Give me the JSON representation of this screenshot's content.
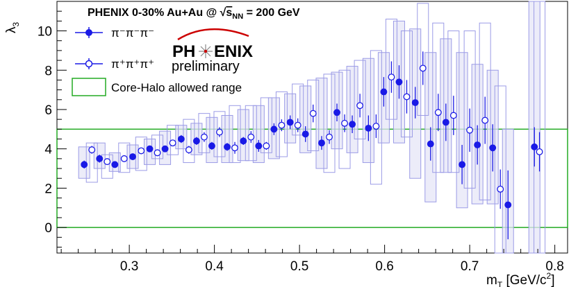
{
  "chart_data": {
    "type": "scatter",
    "title": "PHENIX 0-30% Au+Au @ √s_NN = 200 GeV",
    "title_parts": {
      "prefix": "PHENIX 0-30% Au+Au @ ",
      "sqrt_sign": "√",
      "s": "s",
      "sub": "NN",
      "suffix": " = 200 GeV"
    },
    "xlabel": "m_T [GeV/c²]",
    "xlabel_parts": {
      "m": "m",
      "sub": "T",
      "unit": " [GeV/c",
      "sup": "2",
      "close": "]"
    },
    "ylabel": "λ3",
    "ylabel_parts": {
      "lambda": "λ",
      "sub": "3"
    },
    "xlim": [
      0.215,
      0.815
    ],
    "ylim": [
      -1.3,
      11.5
    ],
    "xticks": [
      0.3,
      0.4,
      0.5,
      0.6,
      0.7,
      0.8
    ],
    "xtick_labels": [
      "0.3",
      "0.4",
      "0.5",
      "0.6",
      "0.7",
      "0.8"
    ],
    "yticks": [
      0,
      2,
      4,
      6,
      8,
      10
    ],
    "ytick_labels": [
      "0",
      "2",
      "4",
      "6",
      "8",
      "10"
    ],
    "grid": false,
    "legend_position": "top-left",
    "colors": {
      "marker": "#1a1ae6",
      "box_fill": "#e6e6f7",
      "box_edge": "#9b9be6",
      "band": "#22aa22"
    },
    "logo": {
      "left": "PH",
      "right": "ENIX",
      "sub": "preliminary"
    },
    "series": [
      {
        "name": "π⁻π⁻π⁻",
        "marker": "filled-circle",
        "points": [
          {
            "x": 0.247,
            "y": 3.2,
            "err": 0.2,
            "sys": [
              2.5,
              4.1
            ]
          },
          {
            "x": 0.265,
            "y": 3.5,
            "err": 0.2,
            "sys": [
              3.0,
              4.3
            ]
          },
          {
            "x": 0.283,
            "y": 3.2,
            "err": 0.15,
            "sys": [
              2.85,
              3.8
            ]
          },
          {
            "x": 0.304,
            "y": 3.6,
            "err": 0.15,
            "sys": [
              3.0,
              4.2
            ]
          },
          {
            "x": 0.324,
            "y": 4.0,
            "err": 0.15,
            "sys": [
              3.2,
              4.5
            ]
          },
          {
            "x": 0.342,
            "y": 4.0,
            "err": 0.15,
            "sys": [
              3.2,
              4.9
            ]
          },
          {
            "x": 0.361,
            "y": 4.5,
            "err": 0.2,
            "sys": [
              4.0,
              5.2
            ]
          },
          {
            "x": 0.379,
            "y": 4.4,
            "err": 0.2,
            "sys": [
              3.7,
              5.3
            ]
          },
          {
            "x": 0.397,
            "y": 4.15,
            "err": 0.2,
            "sys": [
              3.3,
              5.6
            ]
          },
          {
            "x": 0.415,
            "y": 4.1,
            "err": 0.2,
            "sys": [
              3.3,
              5.7
            ]
          },
          {
            "x": 0.434,
            "y": 4.4,
            "err": 0.2,
            "sys": [
              3.4,
              6.0
            ]
          },
          {
            "x": 0.452,
            "y": 4.15,
            "err": 0.3,
            "sys": [
              3.3,
              6.2
            ]
          },
          {
            "x": 0.47,
            "y": 5.0,
            "err": 0.3,
            "sys": [
              3.5,
              6.6
            ]
          },
          {
            "x": 0.489,
            "y": 5.35,
            "err": 0.35,
            "sys": [
              4.3,
              6.8
            ]
          },
          {
            "x": 0.507,
            "y": 4.75,
            "err": 0.4,
            "sys": [
              3.8,
              7.2
            ]
          },
          {
            "x": 0.526,
            "y": 4.3,
            "err": 0.35,
            "sys": [
              3.0,
              7.6
            ]
          },
          {
            "x": 0.544,
            "y": 5.85,
            "err": 0.45,
            "sys": [
              4.0,
              7.9
            ]
          },
          {
            "x": 0.562,
            "y": 5.25,
            "err": 0.45,
            "sys": [
              3.8,
              8.2
            ]
          },
          {
            "x": 0.581,
            "y": 5.05,
            "err": 0.65,
            "sys": [
              3.3,
              8.6
            ]
          },
          {
            "x": 0.599,
            "y": 6.9,
            "err": 0.75,
            "sys": [
              4.3,
              8.9
            ]
          },
          {
            "x": 0.617,
            "y": 7.4,
            "err": 0.85,
            "sys": [
              4.3,
              10.5
            ]
          },
          {
            "x": 0.636,
            "y": 6.35,
            "err": 0.8,
            "sys": [
              2.5,
              10.1
            ]
          },
          {
            "x": 0.654,
            "y": 4.25,
            "err": 0.85,
            "sys": [
              1.3,
              8.9
            ]
          },
          {
            "x": 0.672,
            "y": 5.35,
            "err": 0.95,
            "sys": [
              2.8,
              9.6
            ]
          },
          {
            "x": 0.691,
            "y": 3.2,
            "err": 1.0,
            "sys": [
              1.0,
              8.9
            ]
          },
          {
            "x": 0.709,
            "y": 4.2,
            "err": 1.0,
            "sys": [
              1.2,
              8.3
            ]
          },
          {
            "x": 0.727,
            "y": 4.05,
            "err": 1.2,
            "sys": [
              1.2,
              8.0
            ]
          },
          {
            "x": 0.745,
            "y": 1.15,
            "err": 1.75,
            "sys": [
              -1.3,
              5.0
            ]
          },
          {
            "x": 0.776,
            "y": 4.1,
            "err": 1.0,
            "sys": [
              -1.3,
              11.5
            ]
          }
        ]
      },
      {
        "name": "π⁺π⁺π⁺",
        "marker": "open-circle",
        "points": [
          {
            "x": 0.256,
            "y": 3.95,
            "err": 0.2,
            "sys": [
              2.3,
              4.3
            ]
          },
          {
            "x": 0.274,
            "y": 3.35,
            "err": 0.15,
            "sys": [
              2.5,
              3.7
            ]
          },
          {
            "x": 0.294,
            "y": 3.5,
            "err": 0.15,
            "sys": [
              2.8,
              4.3
            ]
          },
          {
            "x": 0.314,
            "y": 3.9,
            "err": 0.15,
            "sys": [
              2.9,
              4.6
            ]
          },
          {
            "x": 0.333,
            "y": 3.8,
            "err": 0.15,
            "sys": [
              3.5,
              4.7
            ]
          },
          {
            "x": 0.351,
            "y": 4.3,
            "err": 0.15,
            "sys": [
              3.7,
              5.2
            ]
          },
          {
            "x": 0.37,
            "y": 3.95,
            "err": 0.2,
            "sys": [
              3.3,
              5.5
            ]
          },
          {
            "x": 0.388,
            "y": 4.6,
            "err": 0.25,
            "sys": [
              3.8,
              5.8
            ]
          },
          {
            "x": 0.406,
            "y": 4.85,
            "err": 0.25,
            "sys": [
              3.6,
              5.9
            ]
          },
          {
            "x": 0.424,
            "y": 4.05,
            "err": 0.3,
            "sys": [
              3.3,
              6.2
            ]
          },
          {
            "x": 0.443,
            "y": 4.6,
            "err": 0.3,
            "sys": [
              3.4,
              6.2
            ]
          },
          {
            "x": 0.461,
            "y": 4.15,
            "err": 0.2,
            "sys": [
              3.8,
              6.6
            ]
          },
          {
            "x": 0.479,
            "y": 5.2,
            "err": 0.3,
            "sys": [
              3.6,
              6.9
            ]
          },
          {
            "x": 0.498,
            "y": 5.2,
            "err": 0.35,
            "sys": [
              4.7,
              7.3
            ]
          },
          {
            "x": 0.516,
            "y": 5.8,
            "err": 0.45,
            "sys": [
              3.9,
              7.5
            ]
          },
          {
            "x": 0.535,
            "y": 4.6,
            "err": 0.35,
            "sys": [
              2.8,
              7.8
            ]
          },
          {
            "x": 0.553,
            "y": 5.3,
            "err": 0.45,
            "sys": [
              3.0,
              8.0
            ]
          },
          {
            "x": 0.571,
            "y": 6.2,
            "err": 0.6,
            "sys": [
              4.5,
              8.5
            ]
          },
          {
            "x": 0.59,
            "y": 5.15,
            "err": 0.6,
            "sys": [
              2.2,
              9.0
            ]
          },
          {
            "x": 0.608,
            "y": 7.65,
            "err": 0.8,
            "sys": [
              5.5,
              10.6
            ]
          },
          {
            "x": 0.626,
            "y": 6.65,
            "err": 0.85,
            "sys": [
              4.6,
              10.0
            ]
          },
          {
            "x": 0.645,
            "y": 8.1,
            "err": 0.85,
            "sys": [
              5.7,
              11.4
            ]
          },
          {
            "x": 0.663,
            "y": 5.85,
            "err": 0.95,
            "sys": [
              2.8,
              10.4
            ]
          },
          {
            "x": 0.681,
            "y": 5.7,
            "err": 1.0,
            "sys": [
              2.8,
              10.0
            ]
          },
          {
            "x": 0.7,
            "y": 4.95,
            "err": 1.1,
            "sys": [
              2.0,
              10.0
            ]
          },
          {
            "x": 0.718,
            "y": 5.45,
            "err": 1.2,
            "sys": [
              1.4,
              10.4
            ]
          },
          {
            "x": 0.736,
            "y": 1.95,
            "err": 1.0,
            "sys": [
              -1.3,
              7.2
            ]
          },
          {
            "x": 0.782,
            "y": 3.85,
            "err": 1.0,
            "sys": [
              -1.3,
              11.5
            ]
          }
        ]
      }
    ],
    "bands": [
      {
        "name": "Core-Halo allowed range",
        "ymin": 0,
        "ymax": 5.0,
        "color": "#22aa22"
      }
    ]
  }
}
